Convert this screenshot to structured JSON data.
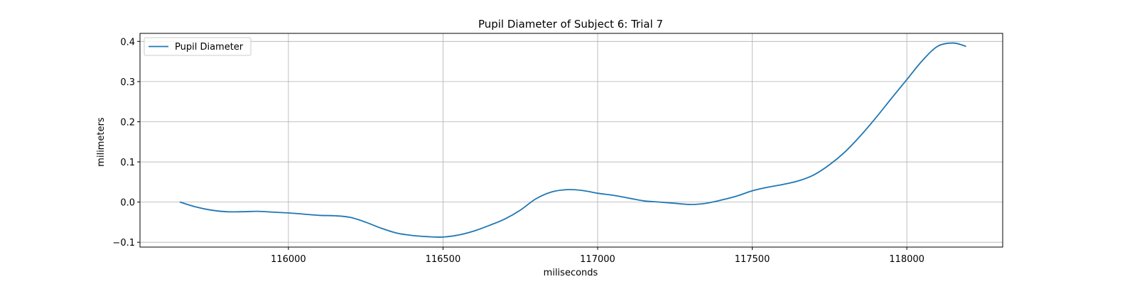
{
  "chart_data": {
    "type": "line",
    "title": "Pupil Diameter of Subject 6: Trial 7",
    "xlabel": "miliseconds",
    "ylabel": "milimeters",
    "xlim": [
      115520,
      118310
    ],
    "ylim": [
      -0.112,
      0.42
    ],
    "xticks": [
      116000,
      116500,
      117000,
      117500,
      118000
    ],
    "yticks": [
      -0.1,
      0.0,
      0.1,
      0.2,
      0.3,
      0.4
    ],
    "ytick_labels": [
      "−0.1",
      "0.0",
      "0.1",
      "0.2",
      "0.3",
      "0.4"
    ],
    "grid": true,
    "legend_position": "top-left",
    "series": [
      {
        "name": "Pupil Diameter",
        "color": "#1f77b4",
        "x": [
          115650,
          115700,
          115750,
          115800,
          115850,
          115900,
          115950,
          116000,
          116050,
          116100,
          116150,
          116200,
          116250,
          116300,
          116350,
          116400,
          116450,
          116500,
          116550,
          116600,
          116650,
          116700,
          116750,
          116800,
          116850,
          116900,
          116950,
          117000,
          117050,
          117100,
          117150,
          117200,
          117250,
          117300,
          117350,
          117400,
          117450,
          117500,
          117550,
          117600,
          117650,
          117700,
          117750,
          117800,
          117850,
          117900,
          117950,
          118000,
          118050,
          118100,
          118150,
          118190
        ],
        "y": [
          0.0,
          -0.012,
          -0.02,
          -0.024,
          -0.024,
          -0.023,
          -0.025,
          -0.027,
          -0.03,
          -0.033,
          -0.034,
          -0.038,
          -0.05,
          -0.065,
          -0.077,
          -0.083,
          -0.086,
          -0.087,
          -0.082,
          -0.072,
          -0.058,
          -0.042,
          -0.02,
          0.008,
          0.025,
          0.031,
          0.029,
          0.022,
          0.017,
          0.01,
          0.003,
          0.0,
          -0.003,
          -0.006,
          -0.003,
          0.005,
          0.015,
          0.028,
          0.037,
          0.044,
          0.053,
          0.068,
          0.093,
          0.125,
          0.165,
          0.21,
          0.258,
          0.305,
          0.352,
          0.388,
          0.396,
          0.388
        ]
      }
    ]
  }
}
